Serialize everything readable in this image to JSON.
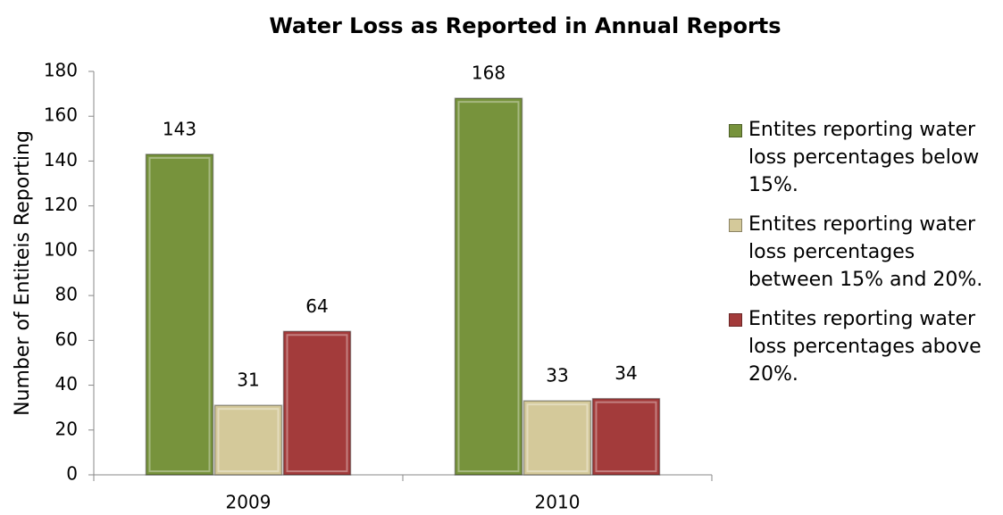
{
  "chart_data": {
    "type": "bar",
    "title": "Water Loss as Reported in Annual Reports",
    "y_label": "Number of Entiteis Reporting",
    "categories": [
      "2009",
      "2010"
    ],
    "series": [
      {
        "name": "Entites reporting water loss percentages below 15%.",
        "color": "#77933c",
        "values": [
          143,
          168
        ]
      },
      {
        "name": "Entites reporting water loss percentages between 15% and 20%.",
        "color": "#d4c99a",
        "values": [
          31,
          33
        ]
      },
      {
        "name": "Entites reporting water loss percentages above 20%.",
        "color": "#a33b3b",
        "values": [
          64,
          34
        ]
      }
    ],
    "ylim": [
      0,
      180
    ],
    "yticks": [
      0,
      20,
      40,
      60,
      80,
      100,
      120,
      140,
      160,
      180
    ],
    "legend": "right",
    "grid": false
  }
}
